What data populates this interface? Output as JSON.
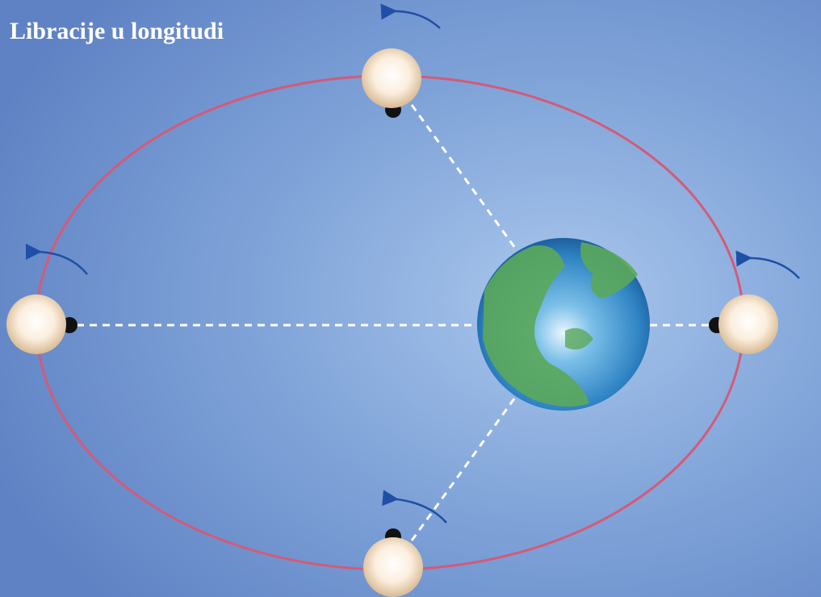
{
  "title": "Libracije u longitudi"
}
